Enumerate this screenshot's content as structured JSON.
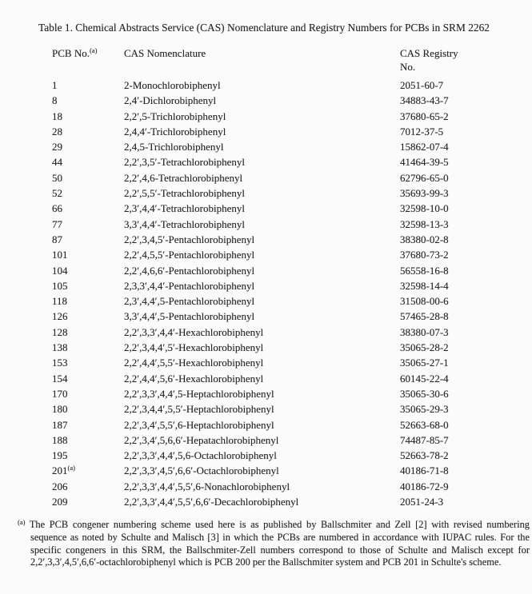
{
  "page": {
    "background_color": "#fbfbfb",
    "text_color": "#262626"
  },
  "table": {
    "title": "Table 1.  Chemical Abstracts Service (CAS) Nomenclature and Registry Numbers for PCBs in SRM 2262",
    "columns": {
      "pcb_no": "PCB No.",
      "pcb_no_sup": "(a)",
      "nomenclature": "CAS Nomenclature",
      "registry_line1": "CAS Registry",
      "registry_line2": "No."
    },
    "rows": [
      {
        "no": "1",
        "sup": "",
        "name": "2-Monochlorobiphenyl",
        "registry": "2051-60-7"
      },
      {
        "no": "8",
        "sup": "",
        "name": "2,4′-Dichlorobiphenyl",
        "registry": "34883-43-7"
      },
      {
        "no": "18",
        "sup": "",
        "name": "2,2′,5-Trichlorobiphenyl",
        "registry": "37680-65-2"
      },
      {
        "no": "28",
        "sup": "",
        "name": "2,4,4′-Trichlorobiphenyl",
        "registry": "7012-37-5"
      },
      {
        "no": "29",
        "sup": "",
        "name": "2,4,5-Trichlorobiphenyl",
        "registry": "15862-07-4"
      },
      {
        "no": "44",
        "sup": "",
        "name": "2,2′,3,5′-Tetrachlorobiphenyl",
        "registry": "41464-39-5"
      },
      {
        "no": "50",
        "sup": "",
        "name": "2,2′,4,6-Tetrachlorobiphenyl",
        "registry": "62796-65-0"
      },
      {
        "no": "52",
        "sup": "",
        "name": "2,2′,5,5′-Tetrachlorobiphenyl",
        "registry": "35693-99-3"
      },
      {
        "no": "66",
        "sup": "",
        "name": "2,3′,4,4′-Tetrachlorobiphenyl",
        "registry": "32598-10-0"
      },
      {
        "no": "77",
        "sup": "",
        "name": "3,3′,4,4′-Tetrachlorobiphenyl",
        "registry": "32598-13-3"
      },
      {
        "no": "87",
        "sup": "",
        "name": "2,2′,3,4,5′-Pentachlorobiphenyl",
        "registry": "38380-02-8"
      },
      {
        "no": "101",
        "sup": "",
        "name": "2,2′,4,5,5′-Pentachlorobiphenyl",
        "registry": "37680-73-2"
      },
      {
        "no": "104",
        "sup": "",
        "name": "2,2′,4,6,6′-Pentachlorobiphenyl",
        "registry": "56558-16-8"
      },
      {
        "no": "105",
        "sup": "",
        "name": "2,3,3′,4,4′-Pentachlorobiphenyl",
        "registry": "32598-14-4"
      },
      {
        "no": "118",
        "sup": "",
        "name": "2,3′,4,4′,5-Pentachlorobiphenyl",
        "registry": "31508-00-6"
      },
      {
        "no": "126",
        "sup": "",
        "name": "3,3′,4,4′,5-Pentachlorobiphenyl",
        "registry": "57465-28-8"
      },
      {
        "no": "128",
        "sup": "",
        "name": "2,2′,3,3′,4,4′-Hexachlorobiphenyl",
        "registry": "38380-07-3"
      },
      {
        "no": "138",
        "sup": "",
        "name": "2,2′,3,4,4′,5′-Hexachlorobiphenyl",
        "registry": "35065-28-2"
      },
      {
        "no": "153",
        "sup": "",
        "name": "2,2′,4,4′,5,5′-Hexachlorobiphenyl",
        "registry": "35065-27-1"
      },
      {
        "no": "154",
        "sup": "",
        "name": "2,2′,4,4′,5,6′-Hexachlorobiphenyl",
        "registry": "60145-22-4"
      },
      {
        "no": "170",
        "sup": "",
        "name": "2,2′,3,3′,4,4′,5-Heptachlorobiphenyl",
        "registry": "35065-30-6"
      },
      {
        "no": "180",
        "sup": "",
        "name": "2,2′,3,4,4′,5,5′-Heptachlorobiphenyl",
        "registry": "35065-29-3"
      },
      {
        "no": "187",
        "sup": "",
        "name": "2,2′,3,4′,5,5′,6-Heptachlorobiphenyl",
        "registry": "52663-68-0"
      },
      {
        "no": "188",
        "sup": "",
        "name": "2,2′,3,4′,5,6,6′-Hepatachlorobiphenyl",
        "registry": "74487-85-7"
      },
      {
        "no": "195",
        "sup": "",
        "name": "2,2′,3,3′,4,4′,5,6-Octachlorobiphenyl",
        "registry": "52663-78-2"
      },
      {
        "no": "201",
        "sup": "(a)",
        "name": "2,2′,3,3′,4,5′,6,6′-Octachlorobiphenyl",
        "registry": "40186-71-8"
      },
      {
        "no": "206",
        "sup": "",
        "name": "2,2′,3,3′,4,4′,5,5′,6-Nonachlorobiphenyl",
        "registry": "40186-72-9"
      },
      {
        "no": "209",
        "sup": "",
        "name": "2,2′,3,3′,4,4′,5,5′,6,6′-Decachlorobiphenyl",
        "registry": "2051-24-3"
      }
    ]
  },
  "footnote": {
    "marker": "(a)",
    "text": "The PCB congener numbering scheme used here is as published by Ballschmiter and Zell [2] with revised numbering sequence as noted by Schulte and Malisch [3] in which the PCBs are numbered in accordance with IUPAC rules.  For the specific congeners in this SRM, the Ballschmiter-Zell numbers correspond to those of Schulte and Malisch except for 2,2′,3,3′,4,5′,6,6′-octachlorobiphenyl which is PCB 200 per the Ballschmiter system and PCB 201 in Schulte's scheme."
  }
}
